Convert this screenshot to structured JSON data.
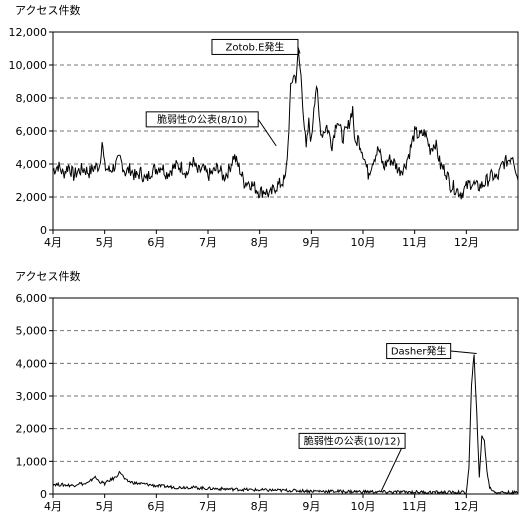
{
  "chart_data": [
    {
      "type": "line",
      "ylabel": "アクセス件数",
      "ylim": [
        0,
        12000
      ],
      "yticks": [
        0,
        2000,
        4000,
        6000,
        8000,
        10000,
        12000
      ],
      "ytick_labels": [
        "0",
        "2,000",
        "4,000",
        "6,000",
        "8,000",
        "10,000",
        "12,000"
      ],
      "xtick_labels": [
        "4月",
        "5月",
        "6月",
        "7月",
        "8月",
        "9月",
        "10月",
        "11月",
        "12月"
      ],
      "x_unit": "month index (0 = start of 4月)",
      "xlim": [
        0,
        9
      ],
      "grid": "horizontal dashed",
      "annotations": [
        {
          "text": "Zotob.E発生",
          "x": 4.78,
          "y": 10700
        },
        {
          "text": "脆弱性の公表(8/10)",
          "x": 4.32,
          "y": 5100
        }
      ],
      "series": [
        {
          "values": [
            [
              0.0,
              3600
            ],
            [
              0.1,
              3900
            ],
            [
              0.2,
              3400
            ],
            [
              0.3,
              3900
            ],
            [
              0.4,
              3300
            ],
            [
              0.5,
              3600
            ],
            [
              0.6,
              3700
            ],
            [
              0.7,
              3500
            ],
            [
              0.8,
              3800
            ],
            [
              0.9,
              3900
            ],
            [
              0.95,
              5400
            ],
            [
              1.0,
              3800
            ],
            [
              1.1,
              3600
            ],
            [
              1.2,
              3900
            ],
            [
              1.3,
              4300
            ],
            [
              1.4,
              3500
            ],
            [
              1.5,
              3700
            ],
            [
              1.6,
              3200
            ],
            [
              1.7,
              3500
            ],
            [
              1.8,
              3000
            ],
            [
              1.9,
              3600
            ],
            [
              2.0,
              3700
            ],
            [
              2.1,
              3900
            ],
            [
              2.2,
              3400
            ],
            [
              2.3,
              3700
            ],
            [
              2.4,
              3900
            ],
            [
              2.5,
              3800
            ],
            [
              2.6,
              3400
            ],
            [
              2.7,
              4200
            ],
            [
              2.8,
              3500
            ],
            [
              2.9,
              3700
            ],
            [
              3.0,
              3300
            ],
            [
              3.1,
              3500
            ],
            [
              3.2,
              3800
            ],
            [
              3.3,
              3200
            ],
            [
              3.4,
              3600
            ],
            [
              3.5,
              4500
            ],
            [
              3.6,
              3800
            ],
            [
              3.7,
              2900
            ],
            [
              3.8,
              2900
            ],
            [
              3.9,
              2600
            ],
            [
              4.0,
              2300
            ],
            [
              4.1,
              2400
            ],
            [
              4.2,
              2100
            ],
            [
              4.3,
              2600
            ],
            [
              4.4,
              2800
            ],
            [
              4.5,
              3100
            ],
            [
              4.55,
              5200
            ],
            [
              4.6,
              8500
            ],
            [
              4.65,
              9400
            ],
            [
              4.7,
              9200
            ],
            [
              4.75,
              10700
            ],
            [
              4.8,
              9300
            ],
            [
              4.85,
              7000
            ],
            [
              4.9,
              4800
            ],
            [
              4.95,
              6500
            ],
            [
              5.0,
              5300
            ],
            [
              5.05,
              7600
            ],
            [
              5.1,
              8800
            ],
            [
              5.15,
              6800
            ],
            [
              5.2,
              5800
            ],
            [
              5.3,
              6300
            ],
            [
              5.4,
              5200
            ],
            [
              5.5,
              6800
            ],
            [
              5.6,
              5600
            ],
            [
              5.7,
              6100
            ],
            [
              5.8,
              7400
            ],
            [
              5.85,
              5000
            ],
            [
              5.9,
              5600
            ],
            [
              6.0,
              4700
            ],
            [
              6.1,
              3400
            ],
            [
              6.2,
              4300
            ],
            [
              6.3,
              4900
            ],
            [
              6.4,
              3800
            ],
            [
              6.5,
              4300
            ],
            [
              6.6,
              4100
            ],
            [
              6.7,
              3600
            ],
            [
              6.8,
              3800
            ],
            [
              6.9,
              4700
            ],
            [
              7.0,
              5900
            ],
            [
              7.1,
              5700
            ],
            [
              7.2,
              5900
            ],
            [
              7.3,
              4900
            ],
            [
              7.4,
              5300
            ],
            [
              7.5,
              3900
            ],
            [
              7.6,
              3600
            ],
            [
              7.7,
              2700
            ],
            [
              7.8,
              2500
            ],
            [
              7.9,
              2200
            ],
            [
              8.0,
              2600
            ],
            [
              8.1,
              2900
            ],
            [
              8.2,
              2600
            ],
            [
              8.3,
              2700
            ],
            [
              8.4,
              3000
            ],
            [
              8.5,
              3300
            ],
            [
              8.6,
              3100
            ],
            [
              8.7,
              4000
            ],
            [
              8.8,
              4200
            ],
            [
              8.9,
              4600
            ],
            [
              9.0,
              3000
            ]
          ]
        }
      ]
    },
    {
      "type": "line",
      "ylabel": "アクセス件数",
      "ylim": [
        0,
        6000
      ],
      "yticks": [
        0,
        1000,
        2000,
        3000,
        4000,
        5000,
        6000
      ],
      "ytick_labels": [
        "0",
        "1,000",
        "2,000",
        "3,000",
        "4,000",
        "5,000",
        "6,000"
      ],
      "xtick_labels": [
        "4月",
        "5月",
        "6月",
        "7月",
        "8月",
        "9月",
        "10月",
        "11月",
        "12月"
      ],
      "x_unit": "month index (0 = start of 4月)",
      "xlim": [
        0,
        9
      ],
      "grid": "horizontal dashed",
      "annotations": [
        {
          "text": "Dasher発生",
          "x": 8.2,
          "y": 4300
        },
        {
          "text": "脆弱性の公表(10/12)",
          "x": 6.35,
          "y": 80
        }
      ],
      "series": [
        {
          "values": [
            [
              0.0,
              300
            ],
            [
              0.2,
              280
            ],
            [
              0.4,
              260
            ],
            [
              0.5,
              330
            ],
            [
              0.6,
              300
            ],
            [
              0.7,
              350
            ],
            [
              0.8,
              530
            ],
            [
              0.9,
              380
            ],
            [
              1.0,
              320
            ],
            [
              1.1,
              420
            ],
            [
              1.2,
              500
            ],
            [
              1.3,
              680
            ],
            [
              1.4,
              420
            ],
            [
              1.5,
              370
            ],
            [
              1.6,
              330
            ],
            [
              1.8,
              300
            ],
            [
              2.0,
              250
            ],
            [
              2.2,
              230
            ],
            [
              2.4,
              200
            ],
            [
              2.6,
              210
            ],
            [
              2.8,
              190
            ],
            [
              3.0,
              170
            ],
            [
              3.2,
              160
            ],
            [
              3.4,
              150
            ],
            [
              3.6,
              140
            ],
            [
              3.8,
              130
            ],
            [
              4.0,
              120
            ],
            [
              4.5,
              110
            ],
            [
              5.0,
              90
            ],
            [
              5.5,
              80
            ],
            [
              6.0,
              70
            ],
            [
              6.5,
              60
            ],
            [
              7.0,
              60
            ],
            [
              7.5,
              50
            ],
            [
              7.9,
              50
            ],
            [
              8.0,
              50
            ],
            [
              8.05,
              800
            ],
            [
              8.1,
              3300
            ],
            [
              8.15,
              4300
            ],
            [
              8.2,
              2500
            ],
            [
              8.25,
              500
            ],
            [
              8.3,
              1800
            ],
            [
              8.35,
              1600
            ],
            [
              8.4,
              700
            ],
            [
              8.45,
              200
            ],
            [
              8.55,
              60
            ],
            [
              8.7,
              50
            ],
            [
              8.85,
              40
            ],
            [
              9.0,
              40
            ]
          ]
        }
      ]
    }
  ]
}
